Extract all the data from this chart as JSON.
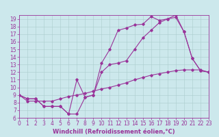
{
  "xlabel": "Windchill (Refroidissement éolien,°C)",
  "xlim": [
    0,
    23
  ],
  "ylim": [
    6,
    19.5
  ],
  "yticks": [
    6,
    7,
    8,
    9,
    10,
    11,
    12,
    13,
    14,
    15,
    16,
    17,
    18,
    19
  ],
  "xticks": [
    0,
    1,
    2,
    3,
    4,
    5,
    6,
    7,
    8,
    9,
    10,
    11,
    12,
    13,
    14,
    15,
    16,
    17,
    18,
    19,
    20,
    21,
    22,
    23
  ],
  "bg_color": "#cce8ec",
  "grid_color": "#aacccc",
  "line_color": "#993399",
  "line1_x": [
    0,
    1,
    2,
    3,
    4,
    5,
    6,
    7,
    8,
    9,
    10,
    11,
    12,
    13,
    14,
    15,
    16,
    17,
    18,
    19,
    20,
    21,
    22,
    23
  ],
  "line1_y": [
    9.0,
    8.5,
    8.5,
    7.5,
    7.5,
    7.5,
    6.5,
    6.5,
    8.7,
    9.0,
    13.2,
    15.0,
    17.5,
    17.8,
    18.2,
    18.3,
    19.3,
    18.8,
    19.0,
    19.2,
    17.3,
    13.8,
    12.2,
    12.0
  ],
  "line2_x": [
    0,
    1,
    2,
    3,
    4,
    5,
    6,
    7,
    8,
    9,
    10,
    11,
    12,
    13,
    14,
    15,
    16,
    17,
    18,
    19,
    20,
    21,
    22,
    23
  ],
  "line2_y": [
    9.0,
    8.5,
    8.5,
    7.5,
    7.5,
    7.5,
    6.5,
    11.0,
    8.7,
    9.0,
    12.0,
    13.0,
    13.2,
    13.5,
    15.0,
    16.5,
    17.5,
    18.5,
    19.0,
    19.5,
    17.3,
    13.8,
    12.2,
    12.0
  ],
  "line3_x": [
    0,
    1,
    2,
    3,
    4,
    5,
    6,
    7,
    8,
    9,
    10,
    11,
    12,
    13,
    14,
    15,
    16,
    17,
    18,
    19,
    20,
    21,
    22,
    23
  ],
  "line3_y": [
    9.0,
    8.2,
    8.2,
    8.2,
    8.2,
    8.5,
    8.8,
    9.0,
    9.2,
    9.5,
    9.8,
    10.0,
    10.3,
    10.6,
    11.0,
    11.3,
    11.6,
    11.8,
    12.0,
    12.2,
    12.3,
    12.3,
    12.3,
    12.0
  ],
  "tick_fontsize": 5.5,
  "xlabel_fontsize": 6,
  "marker_size": 1.8,
  "line_width": 0.8
}
